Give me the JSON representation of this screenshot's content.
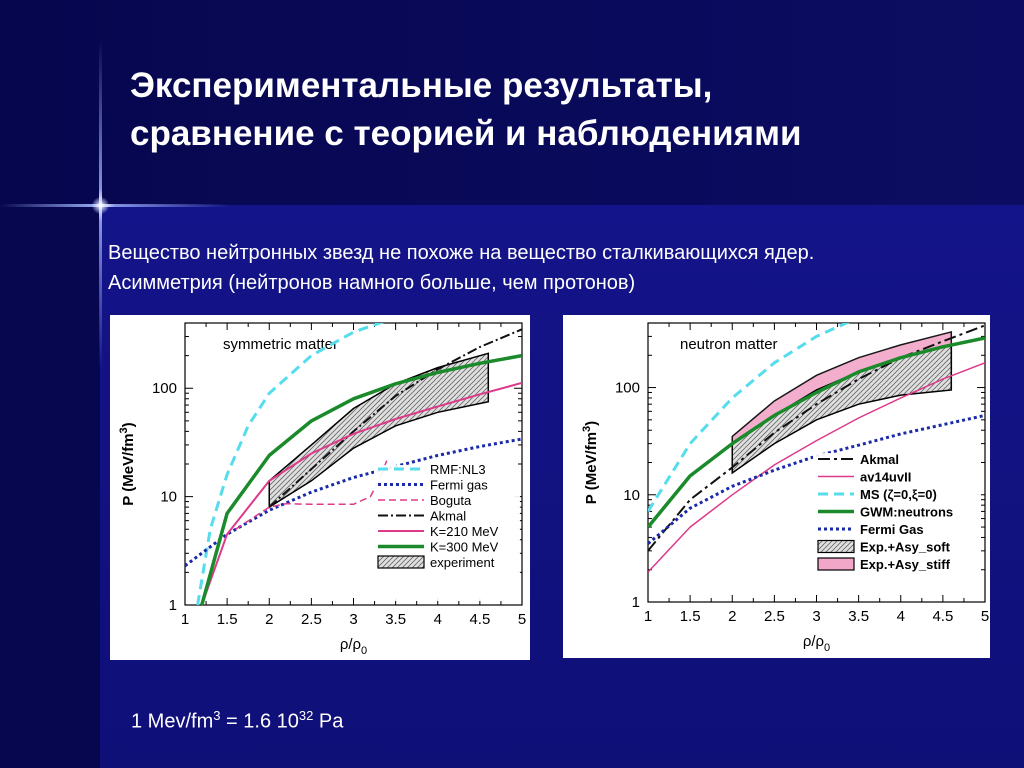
{
  "slide": {
    "title_line1": "Экспериментальные результаты,",
    "title_line2": "сравнение с теорией и наблюдениями",
    "text_line1": "Вещество нейтронных звезд не похоже на вещество сталкивающихся ядер.",
    "text_line2": "Асимметрия (нейтронов намного больше, чем протонов)",
    "footnote": {
      "lhs": "1 Mev/fm",
      "lhs_exp": "3",
      "eq": " = 1.6 10",
      "rhs_exp": "32",
      "unit": " Pa"
    }
  },
  "colors": {
    "cyan": "#55ddee",
    "navy": "#1a2aa8",
    "magenta": "#dd3a8a",
    "green": "#1a8a2a",
    "black": "#111111",
    "pink": "#f2a6c8",
    "hatch": "#888888"
  },
  "chart_data": [
    {
      "type": "line",
      "panel_label": "symmetric matter",
      "xlabel_main": "ρ/ρ",
      "xlabel_sub": "0",
      "ylabel_main": "P (MeV/fm",
      "ylabel_sup": "3",
      "ylabel_end": ")",
      "xlim": [
        1,
        5
      ],
      "ylim": [
        1,
        400
      ],
      "yscale": "log",
      "xticks": [
        "1",
        "1.5",
        "2",
        "2.5",
        "3",
        "3.5",
        "4",
        "4.5",
        "5"
      ],
      "yticks": [
        {
          "v": 1,
          "label": "1"
        },
        {
          "v": 10,
          "label": "10"
        },
        {
          "v": 100,
          "label": "100"
        }
      ],
      "series": [
        {
          "name": "RMF:NL3",
          "color": "cyan",
          "dash": "10,6",
          "width": 3,
          "x": [
            1.15,
            1.3,
            1.5,
            1.75,
            2.0,
            2.5,
            3.0,
            3.5
          ],
          "y": [
            1,
            5,
            16,
            45,
            90,
            200,
            330,
            450
          ]
        },
        {
          "name": "Fermi gas",
          "color": "navy",
          "dash": "3,3",
          "width": 3,
          "x": [
            1.0,
            1.5,
            2.0,
            2.5,
            3.0,
            3.5,
            4.0,
            4.5,
            5.0
          ],
          "y": [
            2.3,
            4.5,
            7.5,
            11,
            15,
            19,
            24,
            29,
            34
          ]
        },
        {
          "name": "Boguta",
          "color": "magenta",
          "dash": "7,4",
          "width": 1.5,
          "x": [
            1.6,
            2.0,
            2.2,
            2.5,
            3.0,
            3.2,
            3.3,
            3.4
          ],
          "y": [
            5,
            8,
            8.6,
            8.5,
            8.5,
            10,
            14,
            22
          ]
        },
        {
          "name": "Akmal",
          "color": "black",
          "dash": "10,3,2,3",
          "width": 2,
          "x": [
            2.0,
            2.5,
            3.0,
            3.5,
            4.0,
            4.5,
            5.0
          ],
          "y": [
            8,
            18,
            40,
            85,
            150,
            240,
            350
          ]
        },
        {
          "name": "K=210 MeV",
          "color": "magenta",
          "dash": "",
          "width": 2,
          "x": [
            1.2,
            1.5,
            2.0,
            2.5,
            3.0,
            3.5,
            4.0,
            4.5,
            5.0
          ],
          "y": [
            1,
            4.5,
            14,
            25,
            38,
            52,
            68,
            88,
            112
          ]
        },
        {
          "name": "K=300 MeV",
          "color": "green",
          "dash": "",
          "width": 3.5,
          "x": [
            1.2,
            1.5,
            2.0,
            2.5,
            3.0,
            3.5,
            4.0,
            4.5,
            5.0
          ],
          "y": [
            1,
            7,
            24,
            50,
            80,
            110,
            140,
            170,
            200
          ]
        }
      ],
      "bands": [
        {
          "name": "experiment",
          "fill": "hatch",
          "x": [
            2.0,
            2.5,
            3.0,
            3.5,
            4.0,
            4.6
          ],
          "upper": [
            14,
            30,
            65,
            110,
            155,
            210
          ],
          "lower": [
            8,
            14,
            28,
            45,
            60,
            75
          ]
        }
      ]
    },
    {
      "type": "line",
      "panel_label": "neutron matter",
      "xlabel_main": "ρ/ρ",
      "xlabel_sub": "0",
      "ylabel_main": "P (MeV/fm",
      "ylabel_sup": "3",
      "ylabel_end": ")",
      "xlim": [
        1,
        5
      ],
      "ylim": [
        1,
        400
      ],
      "yscale": "log",
      "xticks": [
        "1",
        "1.5",
        "2",
        "2.5",
        "3",
        "3.5",
        "4",
        "4.5",
        "5"
      ],
      "yticks": [
        {
          "v": 1,
          "label": "1"
        },
        {
          "v": 10,
          "label": "10"
        },
        {
          "v": 100,
          "label": "100"
        }
      ],
      "series": [
        {
          "name": "Akmal",
          "color": "black",
          "dash": "12,4,3,4",
          "width": 2,
          "x": [
            1.0,
            1.5,
            2.0,
            2.5,
            3.0,
            3.5,
            4.0,
            4.5,
            5.0
          ],
          "y": [
            3,
            9,
            18,
            38,
            70,
            120,
            190,
            270,
            380
          ]
        },
        {
          "name": "av14uvII",
          "color": "magenta",
          "dash": "",
          "width": 1.5,
          "x": [
            1.0,
            1.5,
            2.0,
            2.5,
            3.0,
            3.5,
            4.0,
            4.5,
            5.0
          ],
          "y": [
            1.9,
            5,
            10,
            19,
            32,
            52,
            80,
            120,
            170
          ]
        },
        {
          "name": "MS (ζ=0,ξ=0)",
          "color": "cyan",
          "dash": "10,6",
          "width": 3,
          "x": [
            1.0,
            1.5,
            2.0,
            2.5,
            3.0,
            3.5,
            4.0
          ],
          "y": [
            7,
            30,
            80,
            170,
            300,
            450,
            620
          ]
        },
        {
          "name": "GWM:neutrons",
          "color": "green",
          "dash": "",
          "width": 3.5,
          "x": [
            1.0,
            1.5,
            2.0,
            2.5,
            3.0,
            3.5,
            4.0,
            4.5,
            5.0
          ],
          "y": [
            5,
            15,
            30,
            55,
            90,
            140,
            190,
            240,
            290
          ]
        },
        {
          "name": "Fermi Gas",
          "color": "navy",
          "dash": "3,3",
          "width": 3,
          "x": [
            1.0,
            1.5,
            2.0,
            2.5,
            3.0,
            3.5,
            4.0,
            4.5,
            5.0
          ],
          "y": [
            3.5,
            7.5,
            12,
            17,
            23,
            29,
            37,
            45,
            55
          ]
        }
      ],
      "bands": [
        {
          "name": "Exp.+Asy_stiff",
          "fill": "pink",
          "x": [
            2.0,
            2.5,
            3.0,
            3.5,
            4.0,
            4.6
          ],
          "upper": [
            35,
            75,
            130,
            190,
            250,
            330
          ],
          "lower": [
            20,
            45,
            70,
            90,
            110,
            140
          ]
        },
        {
          "name": "Exp.+Asy_soft",
          "fill": "hatch",
          "x": [
            2.0,
            2.5,
            3.0,
            3.5,
            4.0,
            4.6
          ],
          "upper": [
            30,
            55,
            95,
            140,
            190,
            250
          ],
          "lower": [
            16,
            30,
            50,
            70,
            85,
            95
          ]
        }
      ],
      "legend_order": [
        "Akmal",
        "av14uvII",
        "MS (ζ=0,ξ=0)",
        "GWM:neutrons",
        "Fermi Gas",
        "Exp.+Asy_soft",
        "Exp.+Asy_stiff"
      ]
    }
  ]
}
